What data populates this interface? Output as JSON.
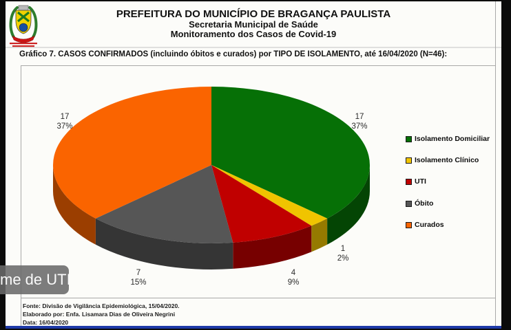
{
  "page": {
    "bottom_line_color": "#1e3aa8"
  },
  "header": {
    "line1": "PREFEITURA DO MUNICÍPIO DE BRAGANÇA PAULISTA",
    "line2": "Secretaria Municipal de Saúde",
    "line3": "Monitoramento dos Casos de Covid-19"
  },
  "chart_title": "Gráfico 7. CASOS CONFIRMADOS (incluindo óbitos e curados) por TIPO DE ISOLAMENTO, até 16/04/2020 (N=46):",
  "chart_data": {
    "type": "pie",
    "style": "3d",
    "title": "Gráfico 7. CASOS CONFIRMADOS (incluindo óbitos e curados) por TIPO DE ISOLAMENTO, até 16/04/2020 (N=46)",
    "total": 46,
    "start_angle_deg": 0,
    "direction": "clockwise",
    "legend_position": "right",
    "slices": [
      {
        "name": "Isolamento Domiciliar",
        "value": 17,
        "percent": "37%",
        "color": "#067006"
      },
      {
        "name": "Isolamento Clínico",
        "value": 1,
        "percent": "2%",
        "color": "#f0c400"
      },
      {
        "name": "UTI",
        "value": 4,
        "percent": "9%",
        "color": "#c00000"
      },
      {
        "name": "Óbito",
        "value": 7,
        "percent": "15%",
        "color": "#565656"
      },
      {
        "name": "Curados",
        "value": 17,
        "percent": "37%",
        "color": "#fa6400"
      }
    ]
  },
  "caption_overlay": {
    "text": "me de UTI,"
  },
  "footer": {
    "line1": "Fonte: Divisão de Vigilância Epidemiológica, 15/04/2020.",
    "line2": "Elaborado por: Enfa. Lisamara Dias de Oliveira Negrini",
    "line3": "Data: 16/04/2020"
  }
}
